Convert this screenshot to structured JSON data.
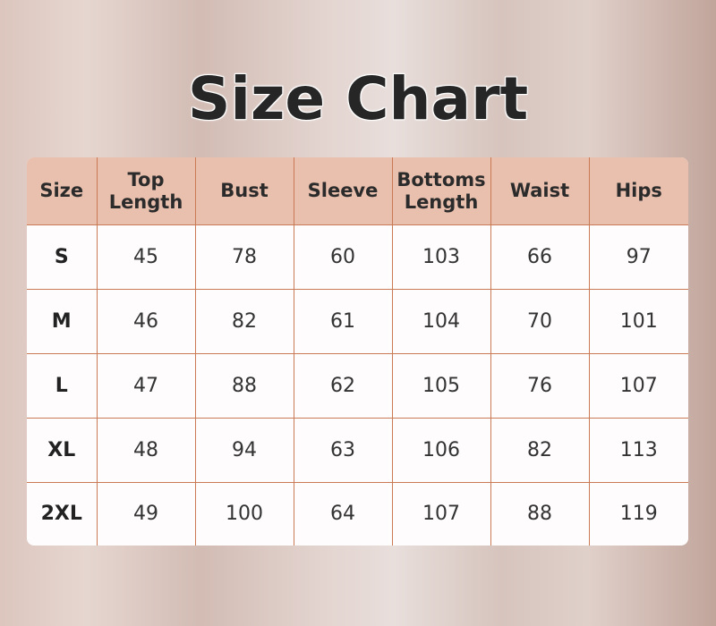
{
  "title": "Size Chart",
  "colors": {
    "header_bg": "#e9bfad",
    "grid_line": "#c97a55",
    "title": "#262626"
  },
  "table": {
    "headers": [
      [
        "Size"
      ],
      [
        "Top",
        "Length"
      ],
      [
        "Bust"
      ],
      [
        "Sleeve"
      ],
      [
        "Bottoms",
        "Length"
      ],
      [
        "Waist"
      ],
      [
        "Hips"
      ]
    ],
    "rows": [
      [
        "S",
        "45",
        "78",
        "60",
        "103",
        "66",
        "97"
      ],
      [
        "M",
        "46",
        "82",
        "61",
        "104",
        "70",
        "101"
      ],
      [
        "L",
        "47",
        "88",
        "62",
        "105",
        "76",
        "107"
      ],
      [
        "XL",
        "48",
        "94",
        "63",
        "106",
        "82",
        "113"
      ],
      [
        "2XL",
        "49",
        "100",
        "64",
        "107",
        "88",
        "119"
      ]
    ]
  }
}
